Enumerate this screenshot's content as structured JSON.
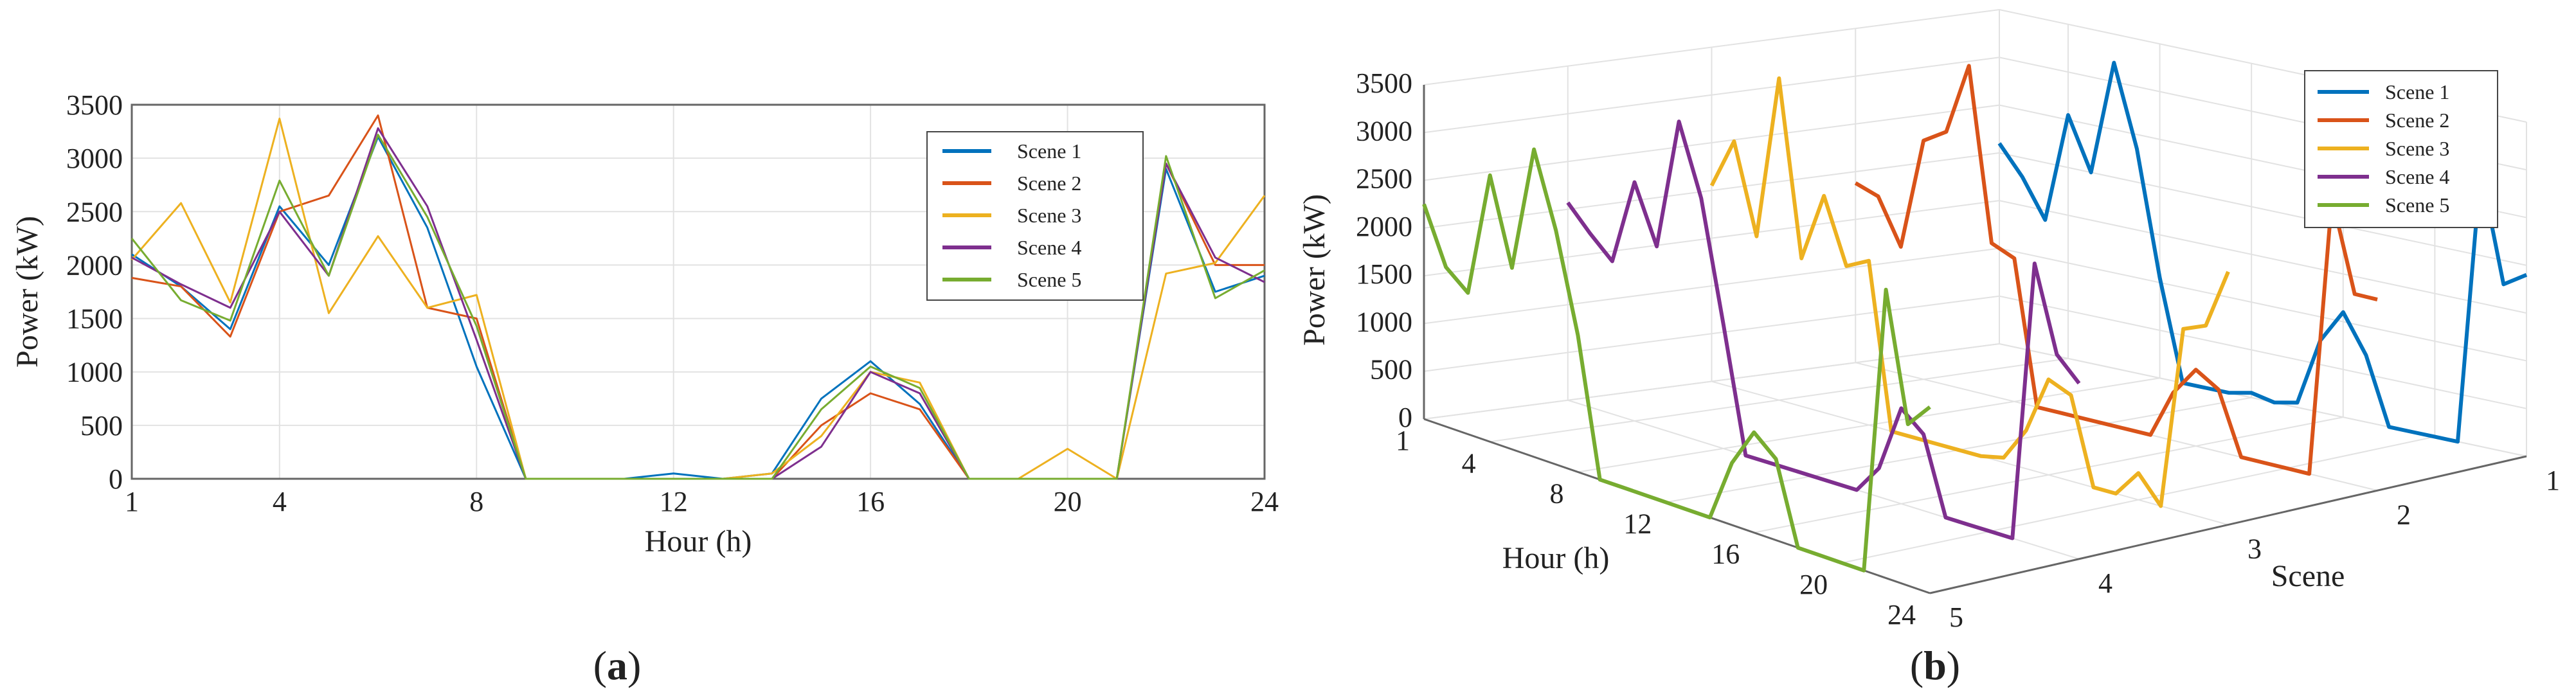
{
  "chart_data": [
    {
      "type": "line",
      "panel_label": "a",
      "xlabel": "Hour (h)",
      "ylabel": "Power (kW)",
      "xlim": [
        1,
        24
      ],
      "ylim": [
        0,
        3500
      ],
      "x_ticks": [
        1,
        4,
        8,
        12,
        16,
        20,
        24
      ],
      "y_ticks": [
        0,
        500,
        1000,
        1500,
        2000,
        2500,
        3000,
        3500
      ],
      "grid": true,
      "legend_position": "top-right",
      "x": [
        1,
        2,
        3,
        4,
        5,
        6,
        7,
        8,
        9,
        10,
        11,
        12,
        13,
        14,
        15,
        16,
        17,
        18,
        19,
        20,
        21,
        22,
        23,
        24
      ],
      "series": [
        {
          "name": "Scene 1",
          "color": "#0072BD",
          "values": [
            2100,
            1800,
            1400,
            2550,
            2000,
            3200,
            2350,
            1050,
            0,
            0,
            0,
            50,
            0,
            50,
            750,
            1100,
            700,
            0,
            0,
            0,
            0,
            2900,
            1750,
            1900
          ]
        },
        {
          "name": "Scene 2",
          "color": "#D95319",
          "values": [
            1880,
            1800,
            1330,
            2500,
            2650,
            3400,
            1600,
            1500,
            0,
            0,
            0,
            0,
            0,
            0,
            500,
            800,
            650,
            0,
            0,
            0,
            0,
            2950,
            2000,
            2000
          ]
        },
        {
          "name": "Scene 3",
          "color": "#EDB120",
          "values": [
            2050,
            2580,
            1650,
            3370,
            1550,
            2270,
            1600,
            1720,
            0,
            0,
            0,
            0,
            0,
            50,
            400,
            1000,
            900,
            0,
            0,
            280,
            0,
            1920,
            2020,
            2650
          ]
        },
        {
          "name": "Scene 4",
          "color": "#7E2F8E",
          "values": [
            2070,
            1820,
            1600,
            2500,
            1900,
            3280,
            2550,
            1300,
            0,
            0,
            0,
            0,
            0,
            0,
            300,
            1000,
            800,
            0,
            0,
            0,
            0,
            2950,
            2070,
            1840
          ]
        },
        {
          "name": "Scene 5",
          "color": "#77AC30",
          "values": [
            2250,
            1670,
            1480,
            2790,
            1900,
            3220,
            2450,
            1430,
            0,
            0,
            0,
            0,
            0,
            0,
            650,
            1050,
            850,
            0,
            0,
            0,
            0,
            3020,
            1690,
            1950
          ]
        }
      ]
    },
    {
      "type": "line",
      "panel_label": "b",
      "xlabel": "Hour (h)",
      "ylabel": "Power (kW)",
      "zlabel": "Scene",
      "x_ticks": [
        1,
        4,
        8,
        12,
        16,
        20,
        24
      ],
      "y_ticks": [
        0,
        500,
        1000,
        1500,
        2000,
        2500,
        3000,
        3500
      ],
      "scene_ticks": [
        1,
        2,
        3,
        4,
        5
      ],
      "grid": true,
      "legend_position": "top-right",
      "x": [
        1,
        2,
        3,
        4,
        5,
        6,
        7,
        8,
        9,
        10,
        11,
        12,
        13,
        14,
        15,
        16,
        17,
        18,
        19,
        20,
        21,
        22,
        23,
        24
      ],
      "series": [
        {
          "name": "Scene 1",
          "color": "#0072BD",
          "values": [
            2100,
            1800,
            1400,
            2550,
            2000,
            3200,
            2350,
            1050,
            0,
            0,
            0,
            50,
            0,
            50,
            750,
            1100,
            700,
            0,
            0,
            0,
            0,
            2900,
            1750,
            1900
          ]
        },
        {
          "name": "Scene 2",
          "color": "#D95319",
          "values": [
            1880,
            1800,
            1330,
            2500,
            2650,
            3400,
            1600,
            1500,
            0,
            0,
            0,
            0,
            0,
            0,
            500,
            800,
            650,
            0,
            0,
            0,
            0,
            2950,
            2000,
            2000
          ]
        },
        {
          "name": "Scene 3",
          "color": "#EDB120",
          "values": [
            2050,
            2580,
            1650,
            3370,
            1550,
            2270,
            1600,
            1720,
            0,
            0,
            0,
            0,
            0,
            50,
            400,
            1000,
            900,
            0,
            0,
            280,
            0,
            1920,
            2020,
            2650
          ]
        },
        {
          "name": "Scene 4",
          "color": "#7E2F8E",
          "values": [
            2070,
            1820,
            1600,
            2500,
            1900,
            3280,
            2550,
            1300,
            0,
            0,
            0,
            0,
            0,
            0,
            300,
            1000,
            800,
            0,
            0,
            0,
            0,
            2950,
            2070,
            1840
          ]
        },
        {
          "name": "Scene 5",
          "color": "#77AC30",
          "values": [
            2250,
            1670,
            1480,
            2790,
            1900,
            3220,
            2450,
            1430,
            0,
            0,
            0,
            0,
            0,
            0,
            650,
            1050,
            850,
            0,
            0,
            0,
            0,
            3020,
            1690,
            1950
          ]
        }
      ]
    }
  ]
}
